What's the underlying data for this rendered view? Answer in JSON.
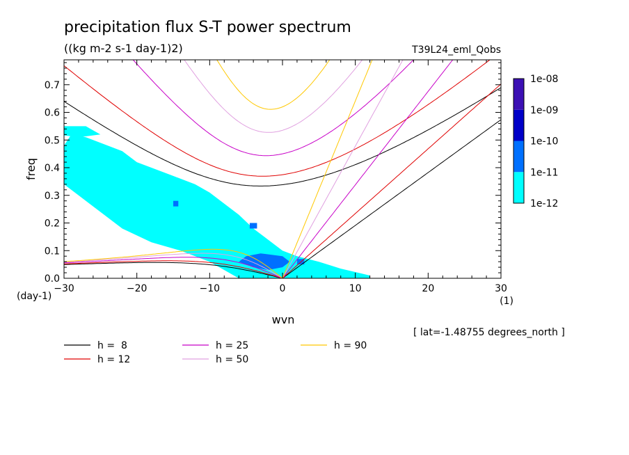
{
  "chart_data": {
    "type": "heatmap",
    "title": "precipitation flux S-T power spectrum",
    "subtitle": "((kg m-2 s-1 day-1)2)",
    "experiment": "T39L24_eml_Qobs",
    "xlabel": "wvn",
    "ylabel": "freq",
    "x_unit": "(1)",
    "y_unit": "(day-1)",
    "xlim": [
      -30,
      30
    ],
    "ylim": [
      0,
      0.79
    ],
    "x_ticks": [
      "-30",
      "-20",
      "-10",
      "0",
      "10",
      "20",
      "30"
    ],
    "y_ticks": [
      "0.0",
      "0.1",
      "0.2",
      "0.3",
      "0.4",
      "0.5",
      "0.6",
      "0.7"
    ],
    "grid": false,
    "annotation": "[ lat=-1.48755 degrees_north ]",
    "colorbar": {
      "labels": [
        "1e-12",
        "1e-11",
        "1e-10",
        "1e-09",
        "1e-08"
      ],
      "colors": [
        "#00ffff",
        "#0070ff",
        "#0000c8",
        "#3c10b4"
      ],
      "position": "right"
    },
    "power_regions": [
      {
        "level": 0,
        "points": [
          [
            -29,
            0.52
          ],
          [
            -27,
            0.51
          ],
          [
            -24,
            0.48
          ],
          [
            -22,
            0.46
          ],
          [
            -20,
            0.42
          ],
          [
            -18,
            0.4
          ],
          [
            -15,
            0.37
          ],
          [
            -12,
            0.34
          ],
          [
            -10,
            0.31
          ],
          [
            -8,
            0.27
          ],
          [
            -6,
            0.23
          ],
          [
            -4,
            0.18
          ],
          [
            -2,
            0.14
          ],
          [
            0,
            0.1
          ],
          [
            2,
            0.08
          ],
          [
            5,
            0.06
          ],
          [
            8,
            0.035
          ],
          [
            12,
            0.01
          ],
          [
            12,
            0
          ],
          [
            -6,
            0
          ],
          [
            -8,
            0.03
          ],
          [
            -10,
            0.06
          ],
          [
            -14,
            0.1
          ],
          [
            -18,
            0.13
          ],
          [
            -22,
            0.18
          ],
          [
            -25,
            0.24
          ],
          [
            -28,
            0.3
          ],
          [
            -30,
            0.34
          ],
          [
            -30,
            0.48
          ]
        ]
      },
      {
        "level": 0,
        "points": [
          [
            -31,
            0.55
          ],
          [
            -27,
            0.55
          ],
          [
            -25,
            0.52
          ],
          [
            -28,
            0.51
          ],
          [
            -31,
            0.52
          ]
        ]
      },
      {
        "level": 0,
        "points": [
          [
            -27,
            0.45
          ],
          [
            -24,
            0.46
          ],
          [
            -23,
            0.44
          ],
          [
            -25,
            0.43
          ],
          [
            -27,
            0.43
          ]
        ]
      },
      {
        "level": 1,
        "points": [
          [
            -5,
            0.08
          ],
          [
            -3,
            0.09
          ],
          [
            0,
            0.08
          ],
          [
            1,
            0.06
          ],
          [
            0,
            0.04
          ],
          [
            -2,
            0.03
          ],
          [
            -4,
            0.04
          ],
          [
            -6,
            0.06
          ]
        ]
      },
      {
        "level": 1,
        "points": [
          [
            -4.5,
            0.2
          ],
          [
            -3.5,
            0.2
          ],
          [
            -3.5,
            0.18
          ],
          [
            -4.5,
            0.18
          ]
        ]
      },
      {
        "level": 1,
        "points": [
          [
            -15,
            0.28
          ],
          [
            -14.3,
            0.28
          ],
          [
            -14.3,
            0.26
          ],
          [
            -15,
            0.26
          ]
        ]
      },
      {
        "level": 1,
        "points": [
          [
            2,
            0.07
          ],
          [
            3,
            0.07
          ],
          [
            3,
            0.05
          ],
          [
            2,
            0.05
          ]
        ]
      }
    ],
    "curve_family_note": "shallow-water equatorial wave dispersion curves (Kelvin, inertia-gravity n=1, equatorial Rossby n=1) for several equivalent depths",
    "series": [
      {
        "name": "h =  8",
        "color": "#000000",
        "h": 8
      },
      {
        "name": "h = 12",
        "color": "#e00000",
        "h": 12
      },
      {
        "name": "h = 25",
        "color": "#c800c8",
        "h": 25
      },
      {
        "name": "h = 50",
        "color": "#e0a0e0",
        "h": 50
      },
      {
        "name": "h = 90",
        "color": "#ffc800",
        "h": 90
      }
    ]
  },
  "legend": {
    "items": [
      {
        "label": "h =  8",
        "color": "#000000"
      },
      {
        "label": "h = 25",
        "color": "#c800c8"
      },
      {
        "label": "h = 90",
        "color": "#ffc800"
      },
      {
        "label": "h = 12",
        "color": "#e00000"
      },
      {
        "label": "h = 50",
        "color": "#e0a0e0"
      }
    ]
  }
}
